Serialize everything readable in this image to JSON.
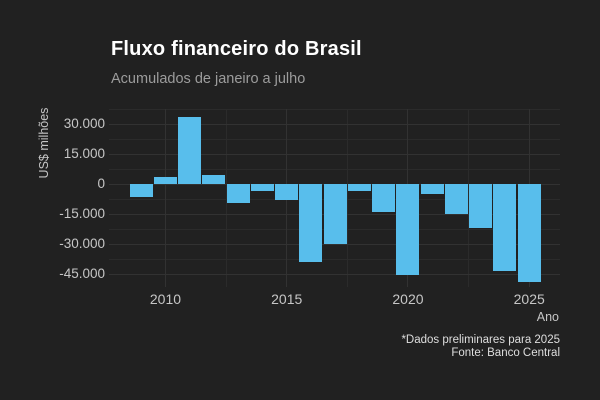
{
  "chart_data": {
    "type": "bar",
    "title": "Fluxo financeiro do Brasil",
    "subtitle": "Acumulados de janeiro a julho",
    "xlabel": "Ano",
    "ylabel": "US$ milhões",
    "caption_line1": "*Dados preliminares para 2025",
    "caption_line2": "Fonte: Banco Central",
    "unit": "US$ milhões",
    "categories": [
      2009,
      2010,
      2011,
      2012,
      2013,
      2014,
      2015,
      2016,
      2017,
      2018,
      2019,
      2020,
      2021,
      2022,
      2023,
      2024,
      2025
    ],
    "values": [
      -6450,
      3650,
      33500,
      4500,
      -9450,
      -3200,
      -7950,
      -39000,
      -30000,
      -3350,
      -14000,
      -45200,
      -4850,
      -15100,
      -22000,
      -43200,
      -49000
    ],
    "x_ticks": [
      {
        "v": 2010,
        "label": "2010"
      },
      {
        "v": 2015,
        "label": "2015"
      },
      {
        "v": 2020,
        "label": "2020"
      },
      {
        "v": 2025,
        "label": "2025"
      }
    ],
    "y_ticks": [
      {
        "v": 30000,
        "label": "30.000"
      },
      {
        "v": 15000,
        "label": "15.000"
      },
      {
        "v": 0,
        "label": "0"
      },
      {
        "v": -15000,
        "label": "-15.000"
      },
      {
        "v": -30000,
        "label": "-30.000"
      },
      {
        "v": -45000,
        "label": "-45.000"
      }
    ],
    "x_minor_ticks": [
      2012.5,
      2017.5,
      2022.5
    ],
    "y_minor_ticks": [
      37500,
      22500,
      7500,
      -7500,
      -22500,
      -37500
    ],
    "xlim": [
      2007.65,
      2026.27
    ],
    "ylim": [
      -51350,
      37650
    ],
    "grid": "major+minor",
    "legend": "none",
    "colors": {
      "background": "#212121",
      "bar": "#58beec",
      "grid_major": "#323232",
      "grid_minor": "#2b2b2b",
      "title": "#ffffff",
      "subtitle": "#9c9c9c",
      "axis_text": "#c6c6c6",
      "caption": "#dedede"
    }
  }
}
